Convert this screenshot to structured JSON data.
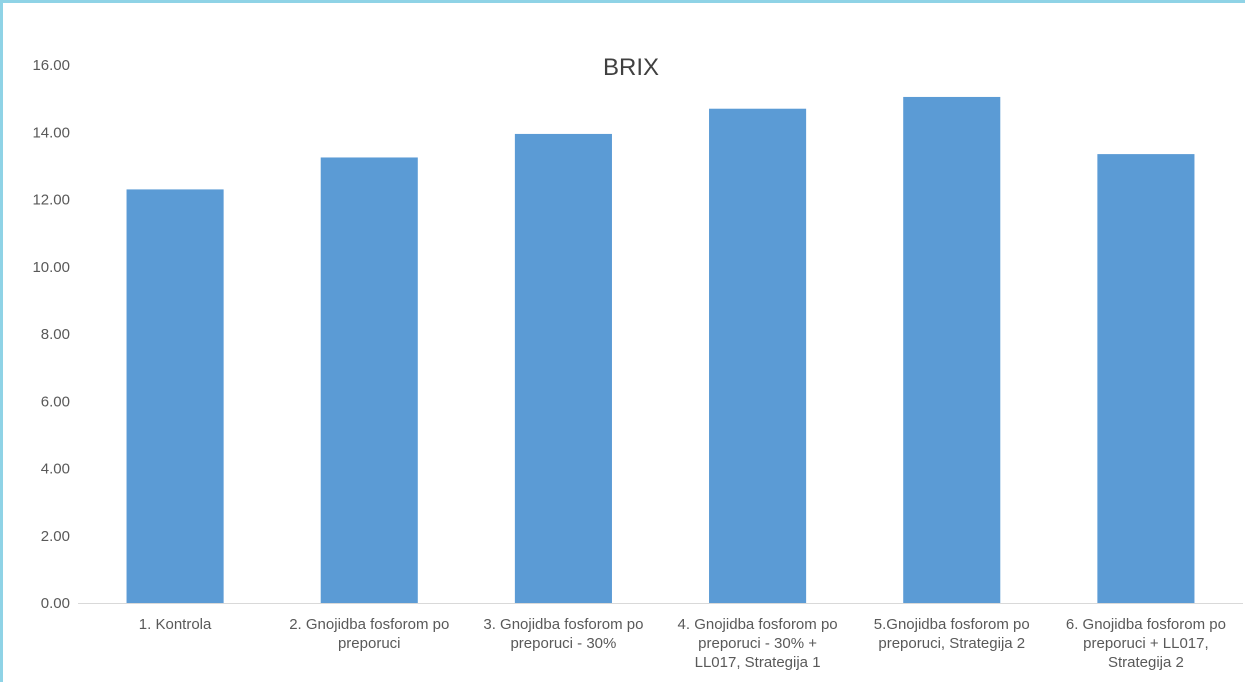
{
  "chart_data": {
    "type": "bar",
    "title": "BRIX",
    "xlabel": "",
    "ylabel": "",
    "ylim": [
      0,
      16
    ],
    "yticks": [
      "0.00",
      "2.00",
      "4.00",
      "6.00",
      "8.00",
      "10.00",
      "12.00",
      "14.00",
      "16.00"
    ],
    "grid": false,
    "bar_color": "#5b9bd5",
    "categories": [
      [
        "1. Kontrola"
      ],
      [
        "2. Gnojidba fosforom po",
        "preporuci"
      ],
      [
        "3. Gnojidba fosforom po",
        "preporuci - 30%"
      ],
      [
        "4. Gnojidba fosforom po",
        "preporuci - 30% +",
        "LL017, Strategija 1"
      ],
      [
        "5.Gnojidba fosforom po",
        "preporuci, Strategija 2"
      ],
      [
        "6. Gnojidba fosforom po",
        "preporuci + LL017,",
        "Strategija 2"
      ]
    ],
    "values": [
      12.3,
      13.25,
      13.95,
      14.7,
      15.05,
      13.35
    ]
  }
}
